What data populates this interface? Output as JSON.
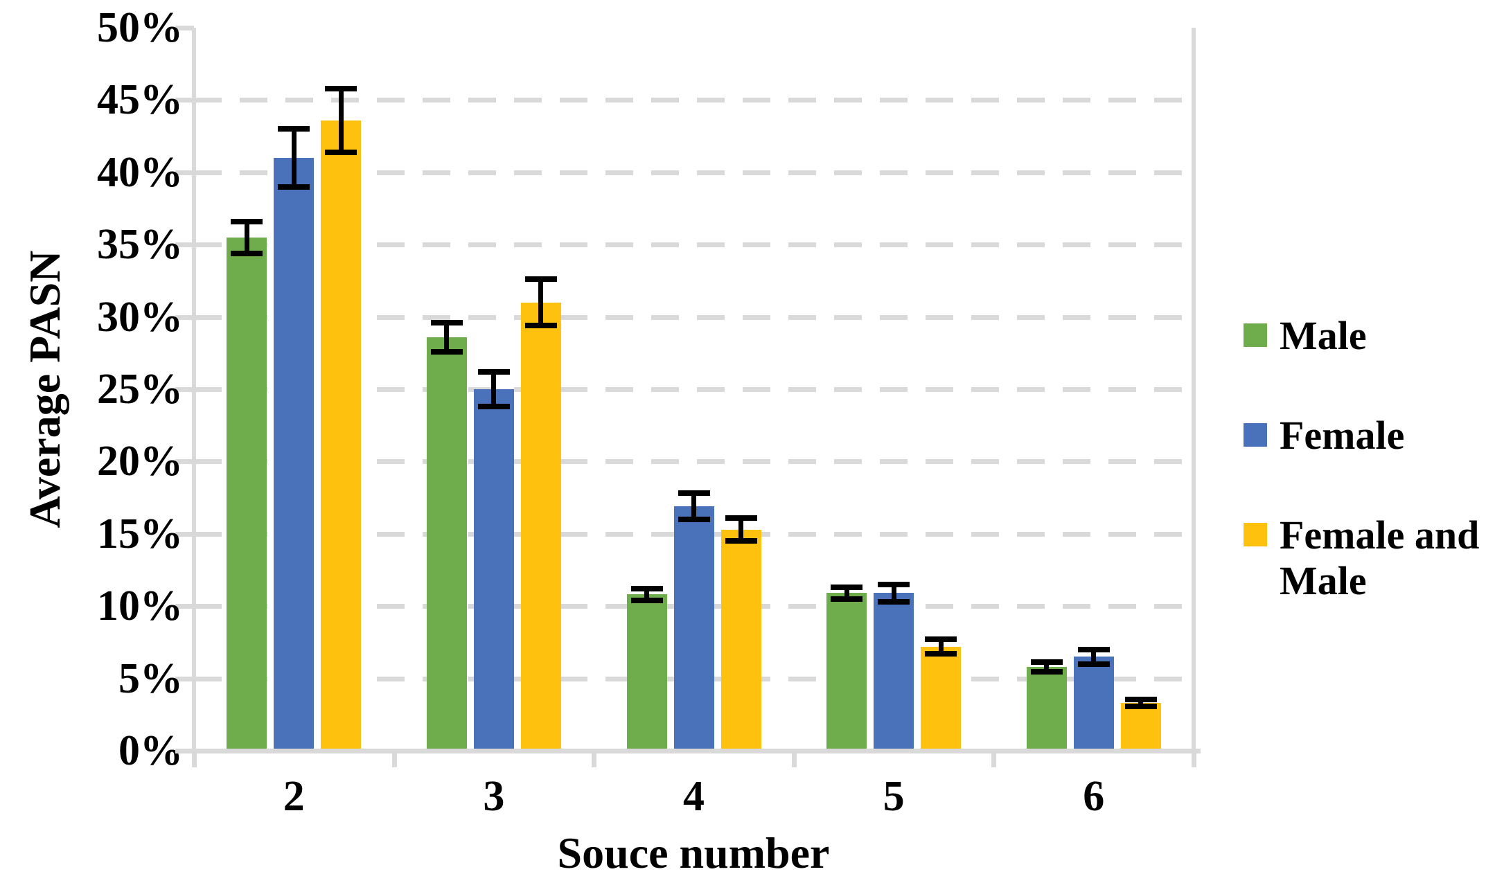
{
  "chart_data": {
    "type": "bar",
    "title": "",
    "ylabel": "Average PASN",
    "xlabel": "Souce number",
    "categories": [
      "2",
      "3",
      "4",
      "5",
      "6"
    ],
    "series": [
      {
        "name": "Male",
        "color": "#6FAC4B",
        "values": [
          35.5,
          28.6,
          10.8,
          10.9,
          5.8
        ],
        "errors": [
          1.1,
          1.0,
          0.4,
          0.4,
          0.35
        ]
      },
      {
        "name": "Female",
        "color": "#4A72BB",
        "values": [
          41.0,
          25.0,
          16.9,
          10.9,
          6.5
        ],
        "errors": [
          2.0,
          1.2,
          0.9,
          0.6,
          0.5
        ]
      },
      {
        "name": "Female and Male",
        "color": "#FEC10D",
        "values": [
          43.6,
          31.0,
          15.3,
          7.2,
          3.3
        ],
        "errors": [
          2.2,
          1.6,
          0.8,
          0.5,
          0.25
        ]
      }
    ],
    "ylim": [
      0,
      50
    ],
    "ytick_step": 5,
    "yticks": [
      "0%",
      "5%",
      "10%",
      "15%",
      "20%",
      "25%",
      "30%",
      "35%",
      "40%",
      "45%",
      "50%"
    ],
    "legend": {
      "position": "right",
      "items": [
        "Male",
        "Female",
        "Female and Male"
      ]
    },
    "grid": {
      "style": "dashed",
      "color": "#D9D9D9"
    },
    "error_bar_color": "#000000"
  }
}
